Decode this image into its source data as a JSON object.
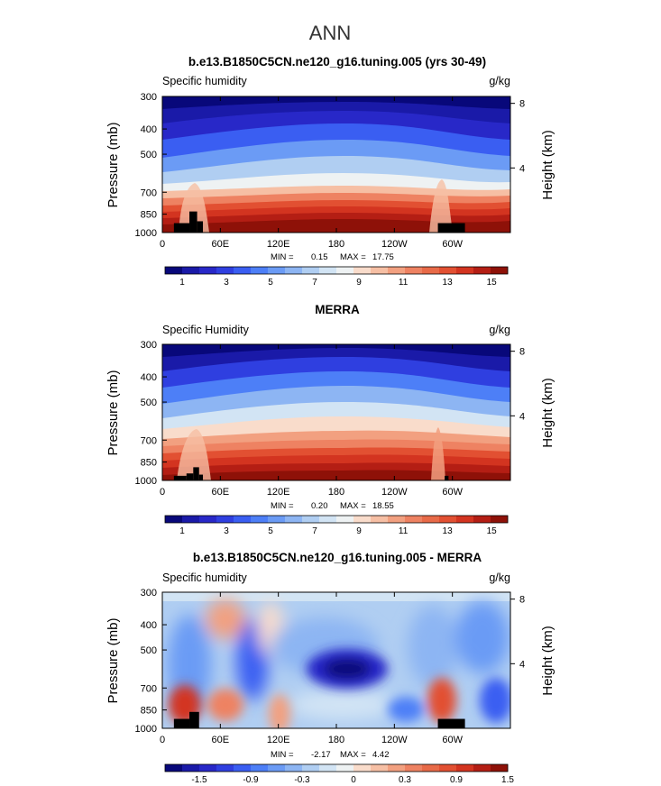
{
  "figure_title": "ANN",
  "axis_text": {
    "pressure_label": "Pressure (mb)",
    "height_label": "Height (km)",
    "min_prefix": "MIN =",
    "max_prefix": "MAX ="
  },
  "colors": {
    "terrain": "#000000",
    "colorbar_full": [
      "#08087a",
      "#1a1aa8",
      "#2828c8",
      "#2f3fe0",
      "#3a5ef2",
      "#4d7ff7",
      "#6b9bf5",
      "#8db5f3",
      "#b0cef2",
      "#d2e4f4",
      "#eef2f3",
      "#f9dccb",
      "#f6bfa4",
      "#f2a080",
      "#ee8262",
      "#e86a48",
      "#e25032",
      "#d33420",
      "#b41e14",
      "#8e1108"
    ],
    "colorbar_diff": [
      "#08087a",
      "#1a1aa8",
      "#2828c8",
      "#2f3fe0",
      "#3a5ef2",
      "#4d7ff7",
      "#6b9bf5",
      "#8db5f3",
      "#b0cef2",
      "#d2e4f4",
      "#eef2f3",
      "#f9dccb",
      "#f6bfa4",
      "#f2a080",
      "#ee8262",
      "#e86a48",
      "#e25032",
      "#d33420",
      "#b41e14",
      "#8e1108"
    ]
  },
  "chart_data": [
    {
      "type": "heatmap",
      "title": "b.e13.B1850C5CN.ne120_g16.tuning.005 (yrs 30-49)",
      "left_label": "Specific humidity",
      "units": "g/kg",
      "ylabel": "Pressure (mb)",
      "y2label": "Height (km)",
      "x_ticks": [
        "0",
        "60E",
        "120E",
        "180",
        "120W",
        "60W"
      ],
      "x_tick_lons": [
        0,
        60,
        120,
        180,
        240,
        300
      ],
      "xlim": [
        0,
        360
      ],
      "y_ticks": [
        "300",
        "400",
        "500",
        "700",
        "850",
        "1000"
      ],
      "y_tick_values": [
        300,
        400,
        500,
        700,
        850,
        1000
      ],
      "ylim": [
        300,
        1000
      ],
      "y2_ticks": [
        "8",
        "4"
      ],
      "y2_tick_values": [
        8,
        4
      ],
      "min": "0.15",
      "max": "17.75",
      "colorbar_labels": [
        "1",
        "3",
        "5",
        "7",
        "9",
        "11",
        "13",
        "15"
      ],
      "terrain_bars": [
        {
          "lon_start": 12,
          "lon_end": 28,
          "top_mb": 920
        },
        {
          "lon_start": 28,
          "lon_end": 36,
          "top_mb": 830
        },
        {
          "lon_start": 36,
          "lon_end": 42,
          "top_mb": 905
        },
        {
          "lon_start": 285,
          "lon_end": 313,
          "top_mb": 920
        }
      ]
    },
    {
      "type": "heatmap",
      "title": "MERRA",
      "left_label": "Specific Humidity",
      "units": "g/kg",
      "ylabel": "Pressure (mb)",
      "y2label": "Height (km)",
      "x_ticks": [
        "0",
        "60E",
        "120E",
        "180",
        "120W",
        "60W"
      ],
      "x_tick_lons": [
        0,
        60,
        120,
        180,
        240,
        300
      ],
      "xlim": [
        0,
        360
      ],
      "y_ticks": [
        "300",
        "400",
        "500",
        "700",
        "850",
        "1000"
      ],
      "y_tick_values": [
        300,
        400,
        500,
        700,
        850,
        1000
      ],
      "ylim": [
        300,
        1000
      ],
      "y2_ticks": [
        "8",
        "4"
      ],
      "y2_tick_values": [
        8,
        4
      ],
      "min": "0.20",
      "max": "18.55",
      "colorbar_labels": [
        "1",
        "3",
        "5",
        "7",
        "9",
        "11",
        "13",
        "15"
      ],
      "terrain_bars": [
        {
          "lon_start": 12,
          "lon_end": 25,
          "top_mb": 960
        },
        {
          "lon_start": 25,
          "lon_end": 32,
          "top_mb": 940
        },
        {
          "lon_start": 32,
          "lon_end": 38,
          "top_mb": 890
        },
        {
          "lon_start": 38,
          "lon_end": 42,
          "top_mb": 950
        },
        {
          "lon_start": 292,
          "lon_end": 296,
          "top_mb": 960
        }
      ]
    },
    {
      "type": "heatmap",
      "title": "b.e13.B1850C5CN.ne120_g16.tuning.005 - MERRA",
      "left_label": "Specific humidity",
      "units": "g/kg",
      "ylabel": "Pressure (mb)",
      "y2label": "Height (km)",
      "x_ticks": [
        "0",
        "60E",
        "120E",
        "180",
        "120W",
        "60W"
      ],
      "x_tick_lons": [
        0,
        60,
        120,
        180,
        240,
        300
      ],
      "xlim": [
        0,
        360
      ],
      "y_ticks": [
        "300",
        "400",
        "500",
        "700",
        "850",
        "1000"
      ],
      "y_tick_values": [
        300,
        400,
        500,
        700,
        850,
        1000
      ],
      "ylim": [
        300,
        1000
      ],
      "y2_ticks": [
        "8",
        "4"
      ],
      "y2_tick_values": [
        8,
        4
      ],
      "min": "-2.17",
      "max": "4.42",
      "colorbar_labels": [
        "-1.5",
        "-0.9",
        "-0.3",
        "0",
        "0.3",
        "0.9",
        "1.5"
      ],
      "terrain_bars": [
        {
          "lon_start": 12,
          "lon_end": 28,
          "top_mb": 920
        },
        {
          "lon_start": 28,
          "lon_end": 38,
          "top_mb": 865
        },
        {
          "lon_start": 285,
          "lon_end": 313,
          "top_mb": 920
        }
      ]
    }
  ]
}
